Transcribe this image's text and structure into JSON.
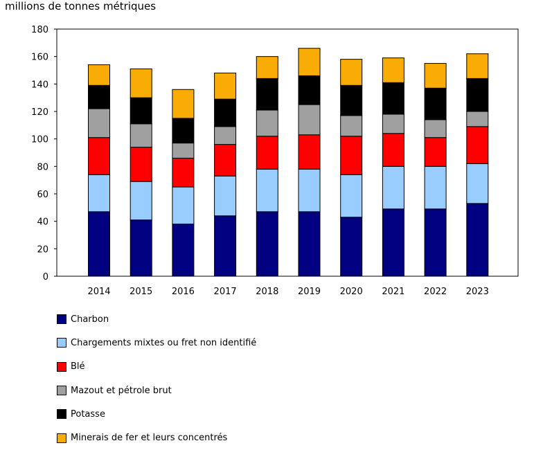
{
  "chart_data": {
    "type": "bar",
    "stacked": true,
    "title": "",
    "ylabel": "millions de tonnes métriques",
    "xlabel": "",
    "ylim": [
      0,
      180
    ],
    "yticks": [
      0,
      20,
      40,
      60,
      80,
      100,
      120,
      140,
      160,
      180
    ],
    "grid": false,
    "legend_position": "bottom",
    "categories": [
      "2014",
      "2015",
      "2016",
      "2017",
      "2018",
      "2019",
      "2020",
      "2021",
      "2022",
      "2023"
    ],
    "series": [
      {
        "name": "Charbon",
        "color": "#000080",
        "values": [
          47,
          41,
          38,
          44,
          47,
          47,
          43,
          49,
          49,
          53
        ]
      },
      {
        "name": "Chargements mixtes ou fret non identifié",
        "color": "#99ccff",
        "values": [
          27,
          28,
          27,
          29,
          31,
          31,
          31,
          31,
          31,
          29
        ]
      },
      {
        "name": "Blé",
        "color": "#ff0000",
        "values": [
          27,
          25,
          21,
          23,
          24,
          25,
          28,
          24,
          21,
          27
        ]
      },
      {
        "name": "Mazout et pétrole brut",
        "color": "#a0a0a0",
        "values": [
          21,
          17,
          11,
          13,
          19,
          22,
          15,
          14,
          13,
          11
        ]
      },
      {
        "name": "Potasse",
        "color": "#000000",
        "values": [
          17,
          19,
          18,
          20,
          23,
          21,
          22,
          23,
          23,
          24
        ]
      },
      {
        "name": "Minerais de fer et leurs concentrés",
        "color": "#f9ab06",
        "values": [
          15,
          21,
          21,
          19,
          16,
          20,
          19,
          18,
          18,
          18
        ]
      }
    ]
  }
}
